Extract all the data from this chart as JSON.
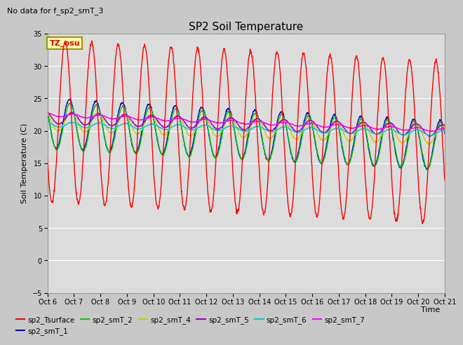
{
  "title": "SP2 Soil Temperature",
  "subtitle": "No data for f_sp2_smT_3",
  "xlabel": "Time",
  "ylabel": "Soil Temperature (C)",
  "ylim": [
    -5,
    35
  ],
  "xlim": [
    0,
    15
  ],
  "tz_label": "TZ_osu",
  "x_tick_labels": [
    "Oct 6",
    "Oct 7",
    "Oct 8",
    "Oct 9",
    "Oct 10",
    "Oct 11",
    "Oct 12",
    "Oct 13",
    "Oct 14",
    "Oct 15",
    "Oct 16",
    "Oct 17",
    "Oct 18",
    "Oct 19",
    "Oct 20",
    "Oct 21"
  ],
  "series_colors": {
    "sp2_Tsurface": "#ff0000",
    "sp2_smT_1": "#0000cc",
    "sp2_smT_2": "#00cc00",
    "sp2_smT_4": "#cccc00",
    "sp2_smT_5": "#9900cc",
    "sp2_smT_6": "#00cccc",
    "sp2_smT_7": "#ff00ff"
  },
  "fig_bg": "#c8c8c8",
  "plot_bg": "#dcdcdc",
  "grid_color": "#ffffff"
}
